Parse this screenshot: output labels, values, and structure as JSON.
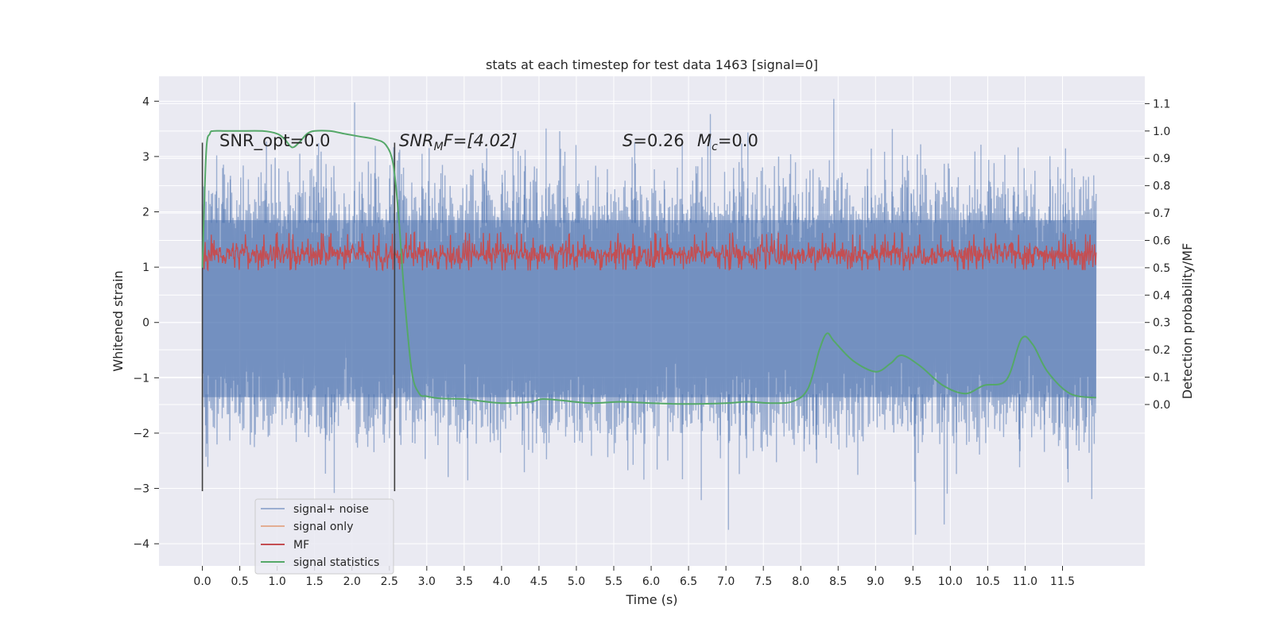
{
  "chart_data": {
    "type": "line",
    "title": "stats at each timestep for test data 1463 [signal=0]",
    "xlabel": "Time (s)",
    "ylabel": "Whitened strain",
    "ylabel_right": "Detection probability/MF",
    "xlim": [
      -0.58,
      12.6
    ],
    "ylim": [
      -4.4,
      4.45
    ],
    "ylim_right": [
      -0.59,
      1.2
    ],
    "x_ticks": [
      "0.0",
      "0.5",
      "1.0",
      "1.5",
      "2.0",
      "2.5",
      "3.0",
      "3.5",
      "4.0",
      "4.5",
      "5.0",
      "5.5",
      "6.0",
      "6.5",
      "7.0",
      "7.5",
      "8.0",
      "8.5",
      "9.0",
      "9.5",
      "10.0",
      "10.5",
      "11.0",
      "11.5"
    ],
    "y_ticks": [
      "4",
      "3",
      "2",
      "1",
      "0",
      "−1",
      "−2",
      "−3",
      "−4"
    ],
    "y_ticks_right": [
      "1.1",
      "1.0",
      "0.9",
      "0.8",
      "0.7",
      "0.6",
      "0.5",
      "0.4",
      "0.3",
      "0.2",
      "0.1",
      "0.0"
    ],
    "grid": true,
    "legend_position": "lower-left",
    "annotations": {
      "snr_opt": "SNR_opt=0.0",
      "snr_mf_prefix": "SNR",
      "snr_mf_sub": "M",
      "snr_mf_rest": "F=[4.02]",
      "s_prefix": "S",
      "s_value": "=0.26",
      "mc_prefix": "M",
      "mc_sub": "c",
      "mc_value": "=0.0"
    },
    "vlines_x": [
      0.0,
      2.57
    ],
    "series": [
      {
        "name": "signal+ noise",
        "color": "#4c72b0",
        "alpha": 0.5,
        "axis": "left",
        "x_range": [
          0,
          11.95
        ],
        "typical_range": [
          -2.1,
          2.6
        ],
        "spike_max": 4.1,
        "spike_min": -3.9
      },
      {
        "name": "signal only",
        "color": "#dd8452",
        "alpha": 0.6,
        "axis": "left",
        "values": []
      },
      {
        "name": "MF",
        "color": "#c44e52",
        "axis": "right",
        "x_range": [
          0,
          11.95
        ],
        "typical_range": [
          0.5,
          0.6
        ],
        "spike_max": 0.63,
        "spike_min": 0.49
      },
      {
        "name": "signal statistics",
        "color": "#55a868",
        "axis": "right",
        "x": [
          0.0,
          0.05,
          0.1,
          0.15,
          0.3,
          0.5,
          0.8,
          1.0,
          1.1,
          1.2,
          1.3,
          1.4,
          1.5,
          1.7,
          1.9,
          2.1,
          2.3,
          2.45,
          2.55,
          2.62,
          2.7,
          2.8,
          2.9,
          3.0,
          3.2,
          3.5,
          3.8,
          4.0,
          4.2,
          4.4,
          4.55,
          4.8,
          5.2,
          5.6,
          6.0,
          6.5,
          7.0,
          7.3,
          7.6,
          7.9,
          8.1,
          8.25,
          8.35,
          8.45,
          8.7,
          9.0,
          9.2,
          9.35,
          9.6,
          9.9,
          10.2,
          10.45,
          10.75,
          10.95,
          11.1,
          11.3,
          11.6,
          11.95
        ],
        "y": [
          0.5,
          0.92,
          0.99,
          1.0,
          1.0,
          1.0,
          1.0,
          0.99,
          0.97,
          0.94,
          0.96,
          0.99,
          1.0,
          1.0,
          0.99,
          0.98,
          0.97,
          0.95,
          0.88,
          0.7,
          0.4,
          0.12,
          0.04,
          0.03,
          0.022,
          0.02,
          0.01,
          0.005,
          0.006,
          0.01,
          0.02,
          0.015,
          0.005,
          0.01,
          0.005,
          0.002,
          0.005,
          0.01,
          0.005,
          0.012,
          0.06,
          0.2,
          0.26,
          0.23,
          0.16,
          0.12,
          0.15,
          0.18,
          0.14,
          0.07,
          0.04,
          0.07,
          0.09,
          0.24,
          0.22,
          0.12,
          0.04,
          0.025
        ]
      }
    ]
  }
}
